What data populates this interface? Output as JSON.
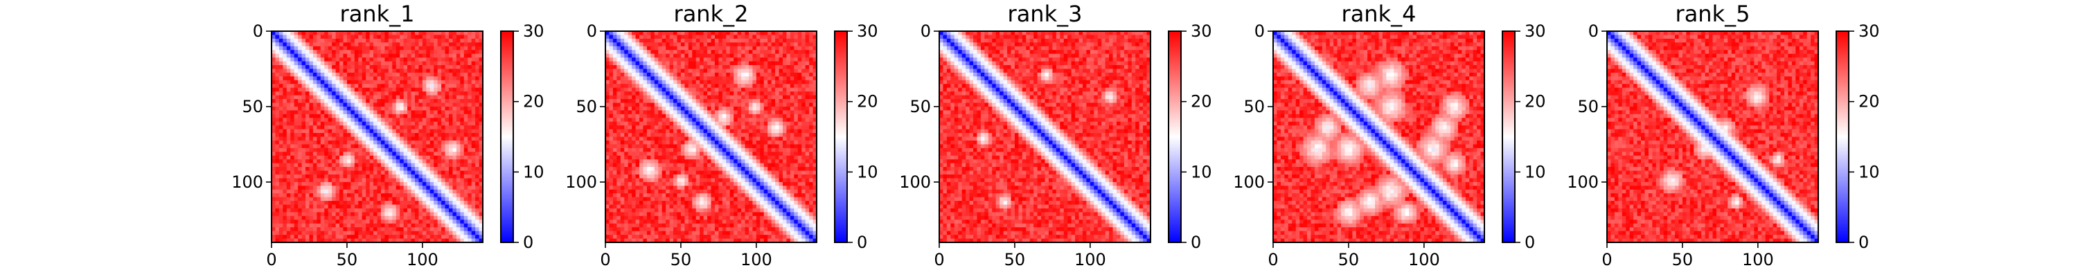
{
  "chart_data": [
    {
      "type": "heatmap",
      "title": "rank_1",
      "xlim": [
        0,
        140
      ],
      "ylim": [
        140,
        0
      ],
      "x_ticks": [
        0,
        50,
        100
      ],
      "y_ticks": [
        0,
        50,
        100
      ],
      "colorbar": {
        "min": 0,
        "max": 30,
        "ticks": [
          0,
          10,
          20,
          30
        ],
        "colormap": [
          "#0000ff",
          "#ffffff",
          "#ff0000"
        ]
      },
      "pattern": "near-diagonal low distances (blue), mostly high (red) elsewhere"
    },
    {
      "type": "heatmap",
      "title": "rank_2",
      "xlim": [
        0,
        140
      ],
      "ylim": [
        140,
        0
      ],
      "x_ticks": [
        0,
        50,
        100
      ],
      "y_ticks": [
        0,
        50,
        100
      ],
      "colorbar": {
        "min": 0,
        "max": 30,
        "ticks": [
          0,
          10,
          20,
          30
        ],
        "colormap": [
          "#0000ff",
          "#ffffff",
          "#ff0000"
        ]
      },
      "pattern": "near-diagonal low distances (blue), a few off-diagonal lighter contacts"
    },
    {
      "type": "heatmap",
      "title": "rank_3",
      "xlim": [
        0,
        140
      ],
      "ylim": [
        140,
        0
      ],
      "x_ticks": [
        0,
        50,
        100
      ],
      "y_ticks": [
        0,
        50,
        100
      ],
      "colorbar": {
        "min": 0,
        "max": 30,
        "ticks": [
          0,
          10,
          20,
          30
        ],
        "colormap": [
          "#0000ff",
          "#ffffff",
          "#ff0000"
        ]
      },
      "pattern": "near-diagonal low distances (blue), mostly high (red) elsewhere"
    },
    {
      "type": "heatmap",
      "title": "rank_4",
      "xlim": [
        0,
        140
      ],
      "ylim": [
        140,
        0
      ],
      "x_ticks": [
        0,
        50,
        100
      ],
      "y_ticks": [
        0,
        50,
        100
      ],
      "colorbar": {
        "min": 0,
        "max": 30,
        "ticks": [
          0,
          10,
          20,
          30
        ],
        "colormap": [
          "#0000ff",
          "#ffffff",
          "#ff0000"
        ]
      },
      "pattern": "near-diagonal low distances (blue), many off-diagonal white contact loops"
    },
    {
      "type": "heatmap",
      "title": "rank_5",
      "xlim": [
        0,
        140
      ],
      "ylim": [
        140,
        0
      ],
      "x_ticks": [
        0,
        50,
        100
      ],
      "y_ticks": [
        0,
        50,
        100
      ],
      "colorbar": {
        "min": 0,
        "max": 30,
        "ticks": [
          0,
          10,
          20,
          30
        ],
        "colormap": [
          "#0000ff",
          "#ffffff",
          "#ff0000"
        ]
      },
      "pattern": "near-diagonal low distances (blue), a few off-diagonal lighter contacts"
    }
  ]
}
